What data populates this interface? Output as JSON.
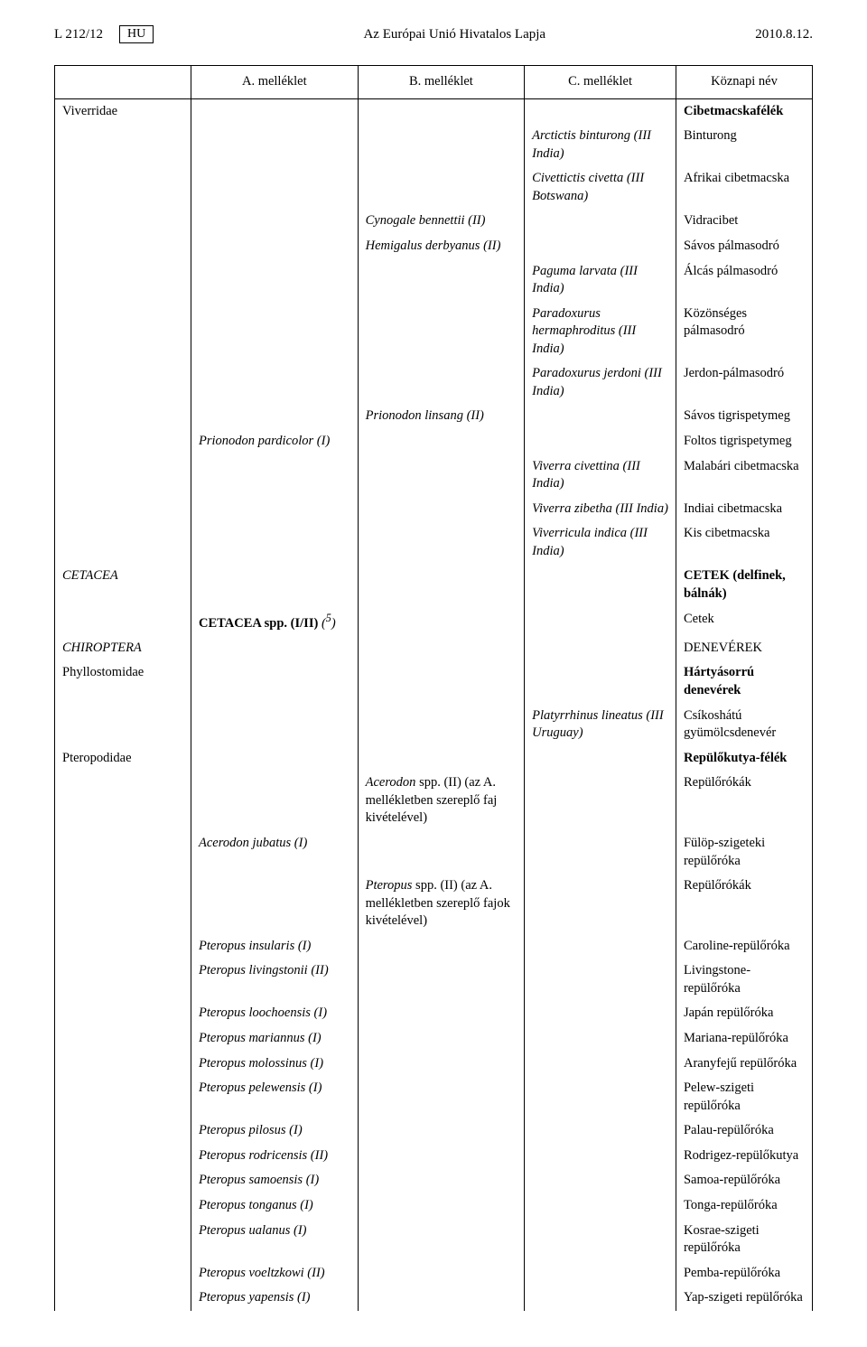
{
  "header": {
    "page_ref": "L 212/12",
    "lang": "HU",
    "title": "Az Európai Unió Hivatalos Lapja",
    "date": "2010.8.12."
  },
  "columns": {
    "a": "A. melléklet",
    "b": "B. melléklet",
    "c": "C. melléklet",
    "d": "Köznapi név"
  },
  "rows": [
    {
      "group": "Viverridae",
      "d": "Cibetmacskafélék",
      "d_bold": true
    },
    {
      "c": "Arctictis binturong (III India)",
      "d": "Binturong"
    },
    {
      "c": "Civettictis civetta (III Bots­wana)",
      "d": "Afrikai cibetmacska"
    },
    {
      "b": "Cynogale bennettii (II)",
      "d": "Vidracibet"
    },
    {
      "b": "Hemigalus derbyanus (II)",
      "d": "Sávos pálmasodró"
    },
    {
      "c": "Paguma larvata (III India)",
      "d": "Álcás pálmasodró"
    },
    {
      "c": "Paradoxurus hermaphroditus (III India)",
      "d": "Közönséges pálmasodró"
    },
    {
      "c": "Paradoxurus jerdoni (III India)",
      "d": "Jerdon-pálmasodró"
    },
    {
      "b": "Prionodon linsang (II)",
      "d": "Sávos tigrispetymeg"
    },
    {
      "a": "Prionodon pardicolor (I)",
      "d": "Foltos tigrispetymeg"
    },
    {
      "c": "Viverra civettina (III India)",
      "d": "Malabári cibetmacska"
    },
    {
      "c": "Viverra zibetha (III India)",
      "d": "Indiai cibetmacska"
    },
    {
      "c": "Viverricula indica (III India)",
      "d": "Kis cibetmacska"
    },
    {
      "order": "CETACEA",
      "d": "CETEK (delfinek, bálnák)",
      "d_bold": true
    },
    {
      "a_html": "<b style='font-style:normal'>CETACEA spp. (I/II)</b> (<sup>5</sup>)",
      "d": "Cetek"
    },
    {
      "order": "CHIROPTERA",
      "d": "DENEVÉREK"
    },
    {
      "group": "Phyllostomidae",
      "d": "Hártyásorrú denevérek",
      "d_bold": true
    },
    {
      "c": "Platyrrhinus lineatus (III Uruguay)",
      "d": "Csíkoshátú gyümölcsdenevér"
    },
    {
      "group": "Pteropodidae",
      "d": "Repülőkutya-félék",
      "d_bold": true
    },
    {
      "b_html": "<i>Acerodon</i> spp. (II) (az A. mellékletben szereplő faj kivételével)",
      "d": "Repülőrókák"
    },
    {
      "a": "Acerodon jubatus (I)",
      "d": "Fülöp-szigeteki repülőróka"
    },
    {
      "b_html": "<i>Pteropus</i> spp. (II) (az A. mellékletben szereplő fajok kivételével)",
      "d": "Repülőrókák"
    },
    {
      "a": "Pteropus insularis (I)",
      "d": "Caroline-repülőróka"
    },
    {
      "a": "Pteropus livingstonii (II)",
      "d": "Livingstone-repülőróka"
    },
    {
      "a": "Pteropus loochoensis (I)",
      "d": "Japán repülőróka"
    },
    {
      "a": "Pteropus mariannus (I)",
      "d": "Mariana-repülőróka"
    },
    {
      "a": "Pteropus molossinus (I)",
      "d": "Aranyfejű repülőróka"
    },
    {
      "a": "Pteropus pelewensis (I)",
      "d": "Pelew-szigeti repülőróka"
    },
    {
      "a": "Pteropus pilosus (I)",
      "d": "Palau-repülőróka"
    },
    {
      "a": "Pteropus rodricensis (II)",
      "d": "Rodrigez-repülőkutya"
    },
    {
      "a": "Pteropus samoensis (I)",
      "d": "Samoa-repülőróka"
    },
    {
      "a": "Pteropus tonganus (I)",
      "d": "Tonga-repülőróka"
    },
    {
      "a": "Pteropus ualanus (I)",
      "d": "Kosrae-szigeti repülőróka"
    },
    {
      "a": "Pteropus voeltzkowi (II)",
      "d": "Pemba-repülőróka"
    },
    {
      "a": "Pteropus yapensis (I)",
      "d": "Yap-szigeti repülőróka"
    }
  ]
}
